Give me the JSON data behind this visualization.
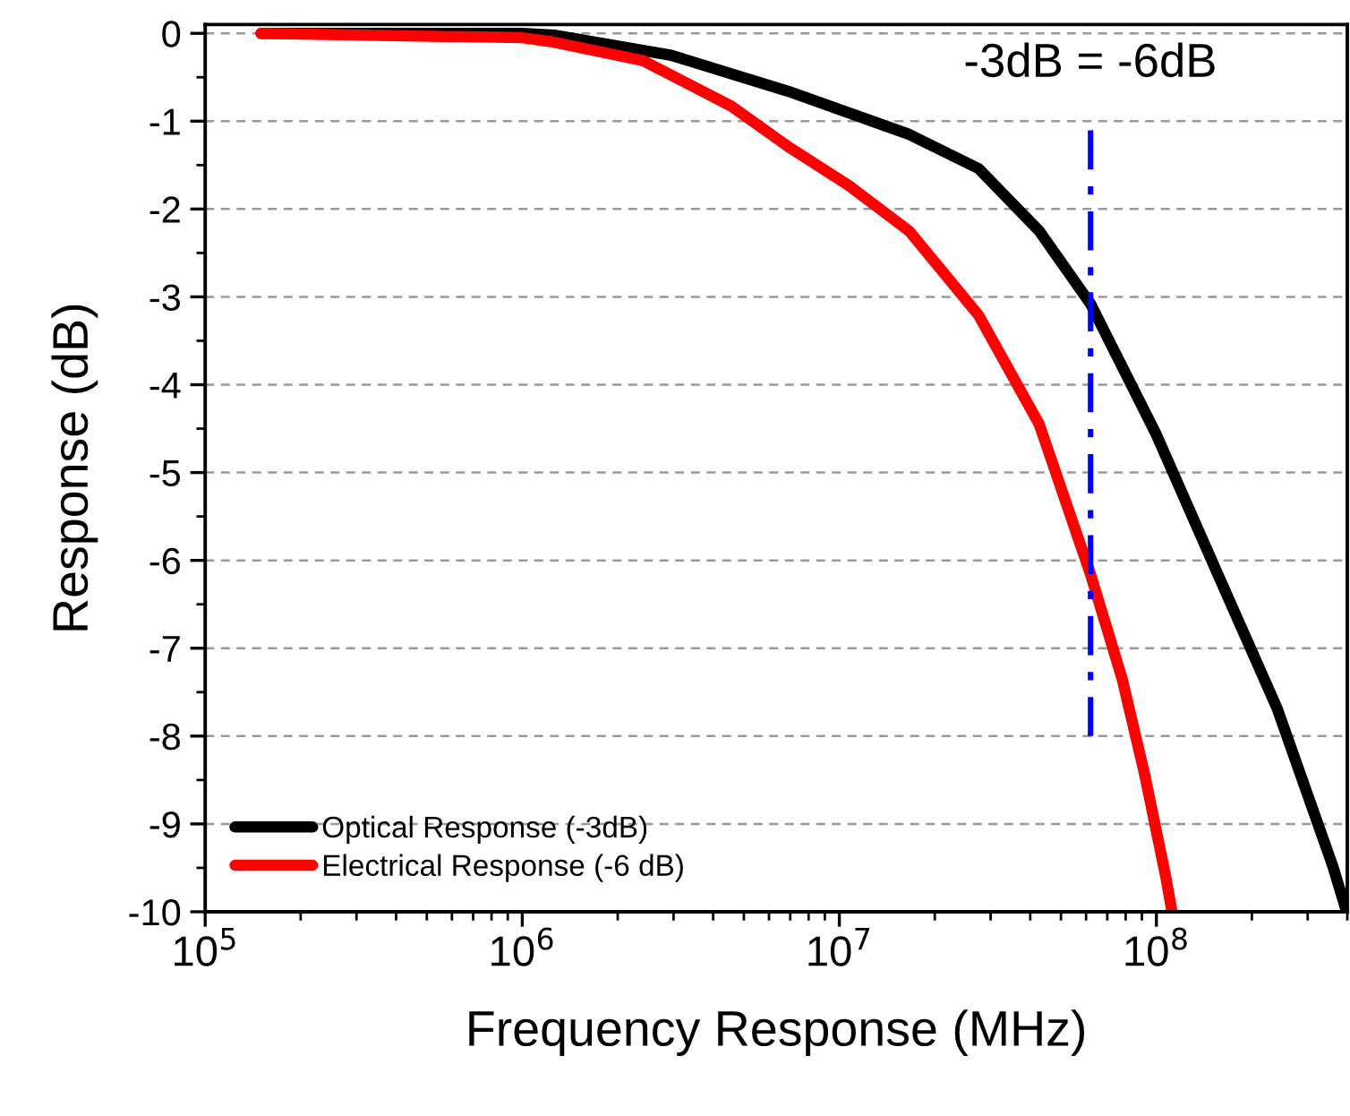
{
  "chart_data": {
    "type": "line",
    "xlabel": "Frequency Response (MHz)",
    "ylabel": "Response (dB)",
    "log": "x",
    "xlim": [
      100000,
      400000000
    ],
    "xticks": [
      {
        "value": 100000,
        "label": "10$^{5}$"
      },
      {
        "value": 1000000,
        "label": "10$^{6}$"
      },
      {
        "value": 10000000,
        "label": "10$^{7}$"
      },
      {
        "value": 100000000,
        "label": "10$^{8}$"
      }
    ],
    "ylim": [
      -10,
      0.1
    ],
    "yticks": [
      -10,
      -9,
      -8,
      -7,
      -6,
      -5,
      -4,
      -3,
      -2,
      -1,
      0
    ],
    "grid": "y",
    "legend": "bottom left",
    "marker": "none",
    "annotations": [
      "-3dB = -6dB"
    ],
    "series": [
      {
        "name": "Optical Response (-3dB)",
        "color": "#000000",
        "x": [
          150000,
          1000000,
          1260000,
          2950000,
          6900000,
          16600000,
          27500000,
          42700000,
          62000000,
          100000000,
          155000000,
          240000000,
          360000000,
          398000000
        ],
        "values": [
          0,
          0,
          -0.02,
          -0.25,
          -0.66,
          -1.15,
          -1.54,
          -2.25,
          -3.08,
          -4.57,
          -6.13,
          -7.68,
          -9.48,
          -10
        ]
      },
      {
        "name": "Electrical Response (-6 dB)",
        "color": "#ff0000",
        "x": [
          150000,
          1000000,
          1260000,
          2400000,
          4570000,
          6900000,
          10700000,
          16600000,
          27500000,
          42700000,
          62000000,
          78000000,
          92000000,
          107000000,
          112000000
        ],
        "values": [
          0,
          -0.05,
          -0.1,
          -0.31,
          -0.83,
          -1.29,
          -1.73,
          -2.25,
          -3.21,
          -4.45,
          -6.16,
          -7.35,
          -8.45,
          -9.6,
          -10
        ]
      },
      {
        "color": "#0000ff",
        "line_style": "dashdot",
        "x": [
          62000000,
          62000000
        ],
        "values": [
          -8,
          -1.1
        ]
      }
    ]
  }
}
